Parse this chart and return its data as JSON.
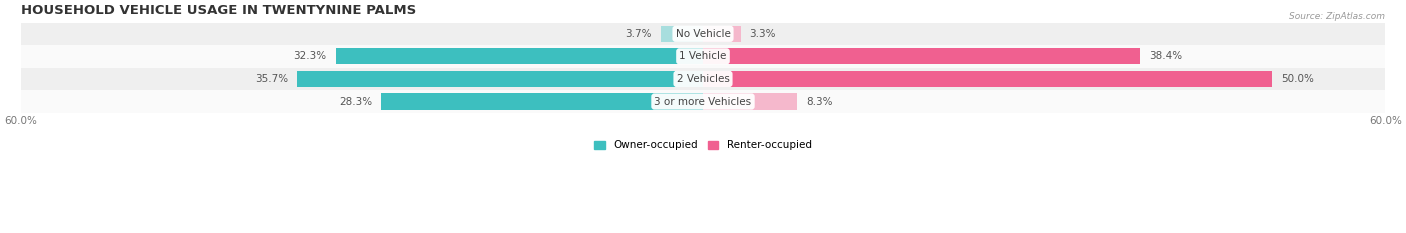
{
  "title": "HOUSEHOLD VEHICLE USAGE IN TWENTYNINE PALMS",
  "source": "Source: ZipAtlas.com",
  "categories": [
    "No Vehicle",
    "1 Vehicle",
    "2 Vehicles",
    "3 or more Vehicles"
  ],
  "owner_values": [
    3.7,
    32.3,
    35.7,
    28.3
  ],
  "renter_values": [
    3.3,
    38.4,
    50.0,
    8.3
  ],
  "owner_color_strong": "#3DBFBF",
  "owner_color_light": "#A8DEDE",
  "renter_color_strong": "#F06090",
  "renter_color_light": "#F5B8CC",
  "row_bg_light": "#EFEFEF",
  "row_bg_white": "#FAFAFA",
  "axis_limit": 60.0,
  "legend_owner": "Owner-occupied",
  "legend_renter": "Renter-occupied",
  "title_fontsize": 9.5,
  "label_fontsize": 7.5,
  "value_fontsize": 7.5,
  "bar_height": 0.72,
  "figsize": [
    14.06,
    2.33
  ]
}
